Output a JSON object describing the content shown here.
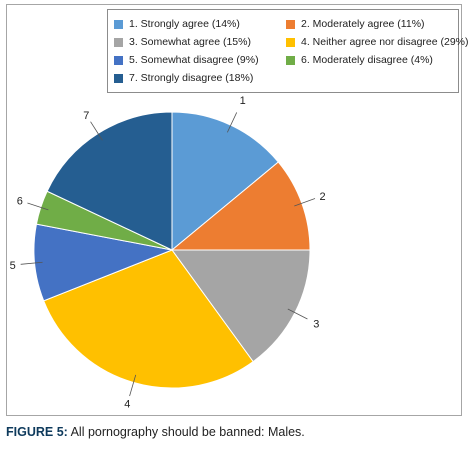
{
  "chart_data": {
    "type": "pie",
    "title": "",
    "slices": [
      {
        "id": "1",
        "legend": "1. Strongly agree (14%)",
        "value": 14,
        "color": "#5b9bd5"
      },
      {
        "id": "2",
        "legend": "2. Moderately agree (11%)",
        "value": 11,
        "color": "#ed7d31"
      },
      {
        "id": "3",
        "legend": "3. Somewhat agree (15%)",
        "value": 15,
        "color": "#a5a5a5"
      },
      {
        "id": "4",
        "legend": "4. Neither agree nor disagree (29%)",
        "value": 29,
        "color": "#ffc000"
      },
      {
        "id": "5",
        "legend": "5. Somewhat disagree (9%)",
        "value": 9,
        "color": "#4472c4"
      },
      {
        "id": "6",
        "legend": "6. Moderately disagree (4%)",
        "value": 4,
        "color": "#70ad47"
      },
      {
        "id": "7",
        "legend": "7. Strongly disagree (18%)",
        "value": 18,
        "color": "#255e91"
      }
    ],
    "legend_placement": "top-right",
    "legend_columns": 2
  },
  "caption": {
    "label": "FIGURE 5:",
    "text": " All pornography should be banned: Males."
  }
}
